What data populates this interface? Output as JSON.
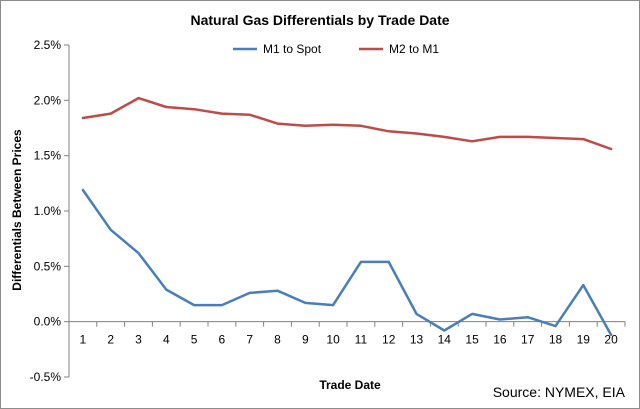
{
  "chart_data": {
    "type": "line",
    "title": "Natural Gas Differentials by Trade Date",
    "xlabel": "Trade Date",
    "ylabel": "Differentials Between Prices",
    "x": [
      1,
      2,
      3,
      4,
      5,
      6,
      7,
      8,
      9,
      10,
      11,
      12,
      13,
      14,
      15,
      16,
      17,
      18,
      19,
      20
    ],
    "x_tick_labels": [
      "1",
      "2",
      "3",
      "4",
      "5",
      "6",
      "7",
      "8",
      "9",
      "10",
      "11",
      "12",
      "13",
      "14",
      "15",
      "16",
      "17",
      "18",
      "19",
      "20"
    ],
    "ylim": [
      -0.5,
      2.5
    ],
    "y_ticks": [
      -0.5,
      0.0,
      0.5,
      1.0,
      1.5,
      2.0,
      2.5
    ],
    "y_tick_labels": [
      "-0.5%",
      "0.0%",
      "0.5%",
      "1.0%",
      "1.5%",
      "2.0%",
      "2.5%"
    ],
    "y_unit": "%",
    "grid": false,
    "legend_position": "top",
    "series": [
      {
        "name": "M1 to Spot",
        "color": "#4a7ebb",
        "values": [
          1.19,
          0.83,
          0.62,
          0.29,
          0.15,
          0.15,
          0.26,
          0.28,
          0.17,
          0.15,
          0.54,
          0.54,
          0.07,
          -0.08,
          0.07,
          0.02,
          0.04,
          -0.04,
          0.33,
          -0.12
        ]
      },
      {
        "name": "M2 to M1",
        "color": "#be4b48",
        "values": [
          1.84,
          1.88,
          2.02,
          1.94,
          1.92,
          1.88,
          1.87,
          1.79,
          1.77,
          1.78,
          1.77,
          1.72,
          1.7,
          1.67,
          1.63,
          1.67,
          1.67,
          1.66,
          1.65,
          1.56
        ]
      }
    ],
    "source": "Source: NYMEX, EIA"
  }
}
